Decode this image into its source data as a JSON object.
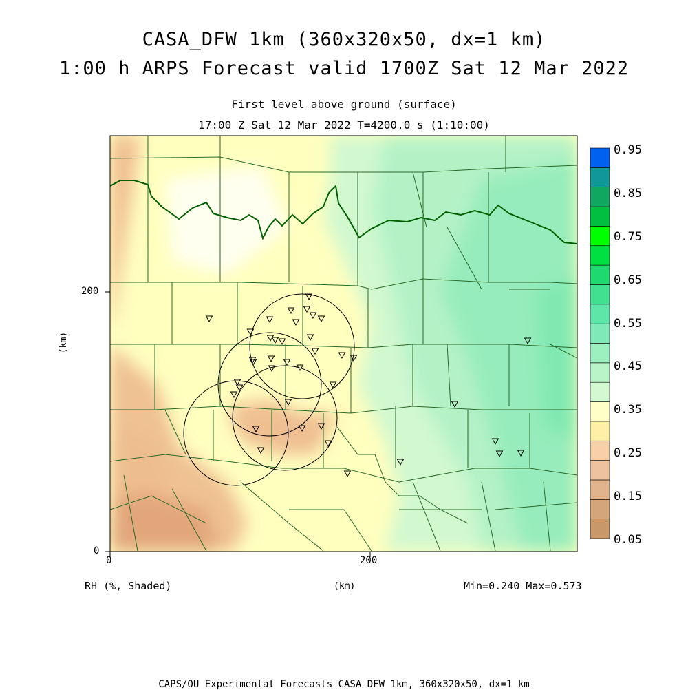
{
  "title_line1": "CASA_DFW 1km (360x320x50, dx=1 km)",
  "title_line2": "1:00 h ARPS Forecast valid 1700Z Sat 12 Mar 2022",
  "subtitle_line1": "First level above ground (surface)",
  "subtitle_line2": "17:00 Z Sat 12 Mar 2022   T=4200.0 s (1:10:00)",
  "axes": {
    "x_unit": "(km)",
    "y_unit": "(km)",
    "x_ticks": [
      "0",
      "200"
    ],
    "y_ticks": [
      "0",
      "200"
    ]
  },
  "field_label": "RH (%, Shaded)",
  "stats": "Min=0.240 Max=0.573",
  "footer": "CAPS/OU Experimental Forecasts  CASA DFW 1km, 360x320x50, dx=1 km",
  "colorbar": {
    "labels": [
      "0.95",
      "0.85",
      "0.75",
      "0.65",
      "0.55",
      "0.45",
      "0.35",
      "0.25",
      "0.15",
      "0.05"
    ],
    "colors": [
      "#c89868",
      "#d4a57a",
      "#e0b48c",
      "#ecc39e",
      "#f6d0a8",
      "#fff0a8",
      "#ffffc8",
      "#d4f8d0",
      "#b8f4c8",
      "#9cf0c0",
      "#7eeab8",
      "#5ee6a8",
      "#40e090",
      "#1ed870",
      "#00e040",
      "#00ff00",
      "#00c040",
      "#10a860",
      "#109898",
      "#0060f0"
    ]
  },
  "colors": {
    "dry": "#ecb88a",
    "mid": "#ffffbe",
    "moist": "#a8f0c8",
    "boundary": "#006000",
    "county": "#2a6a2a"
  }
}
